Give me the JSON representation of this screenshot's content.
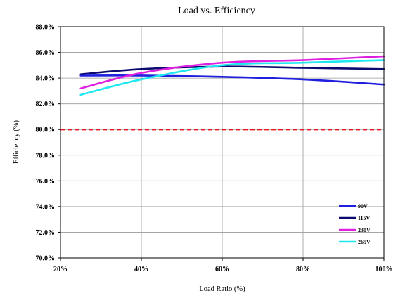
{
  "chart_data": {
    "type": "line",
    "title": "Load vs. Efficiency",
    "xlabel": "Load Ratio (%)",
    "ylabel": "Efficiency (%)",
    "xlim": [
      20,
      100
    ],
    "ylim": [
      70,
      88
    ],
    "x_ticks": [
      "20%",
      "40%",
      "60%",
      "80%",
      "100%"
    ],
    "y_ticks": [
      "70.0%",
      "72.0%",
      "74.0%",
      "76.0%",
      "78.0%",
      "80.0%",
      "82.0%",
      "84.0%",
      "86.0%",
      "88.0%"
    ],
    "grid": true,
    "legend_position": "bottom-right",
    "series": [
      {
        "name": "90V",
        "color": "#1f1fe0",
        "x": [
          25,
          40,
          60,
          80,
          100
        ],
        "y": [
          84.2,
          84.2,
          84.1,
          83.9,
          83.5
        ]
      },
      {
        "name": "115V",
        "color": "#0a0a70",
        "x": [
          25,
          40,
          60,
          80,
          100
        ],
        "y": [
          84.3,
          84.7,
          84.9,
          84.8,
          84.7
        ]
      },
      {
        "name": "230V",
        "color": "#e020e0",
        "x": [
          25,
          40,
          60,
          80,
          100
        ],
        "y": [
          83.2,
          84.4,
          85.2,
          85.4,
          85.7
        ]
      },
      {
        "name": "265V",
        "color": "#20e8f0",
        "x": [
          25,
          40,
          60,
          80,
          100
        ],
        "y": [
          82.7,
          83.9,
          85.0,
          85.2,
          85.4
        ]
      }
    ],
    "reference_line": {
      "y": 80,
      "color": "#e8141e",
      "style": "dashed"
    }
  }
}
